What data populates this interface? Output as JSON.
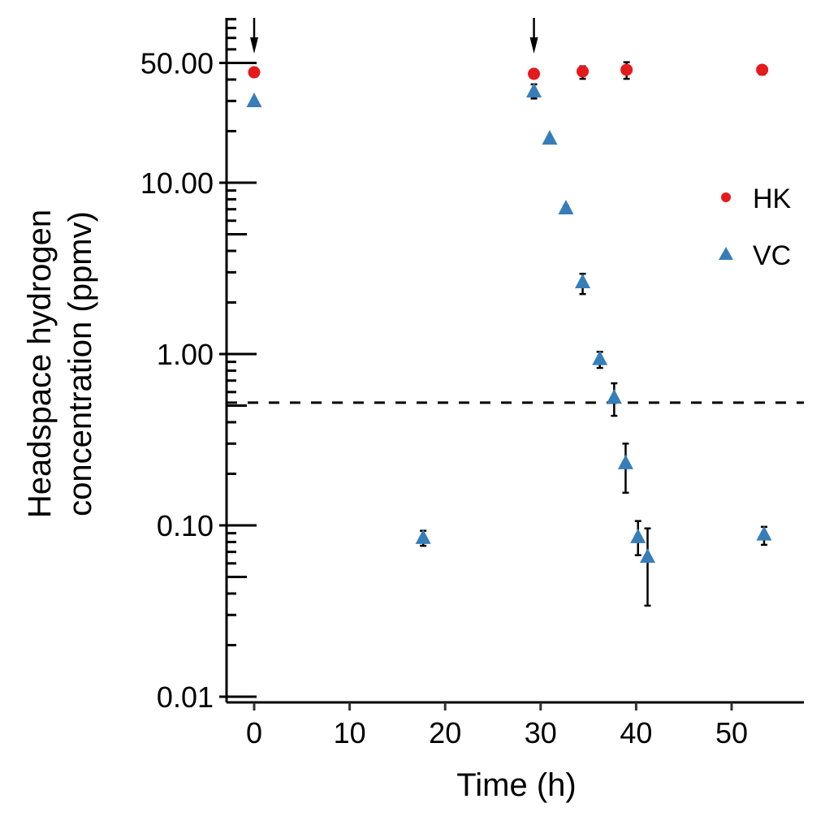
{
  "chart_data": {
    "type": "scatter",
    "title": "",
    "xlabel": "Time (h)",
    "ylabel_lines": [
      "Headspace hydrogen",
      "concentration (ppmv)"
    ],
    "ylabel": "Headspace hydrogen concentration (ppmv)",
    "xscale": "linear",
    "yscale": "log",
    "xlim": [
      -2.5,
      57.5
    ],
    "ylim": [
      0.0095,
      95
    ],
    "xticks": [
      0,
      10,
      20,
      30,
      40,
      50
    ],
    "xtick_labels": [
      "0",
      "10",
      "20",
      "30",
      "40",
      "50"
    ],
    "yticks": [
      0.01,
      0.1,
      1,
      10,
      50
    ],
    "ytick_labels": [
      "0.01",
      "0.10",
      "1.00",
      "10.00",
      "50.00"
    ],
    "grid": false,
    "legend_position": "right",
    "detection_limit": 0.52,
    "arrows_at_time": [
      0,
      29.3
    ],
    "series": [
      {
        "name": "HK",
        "marker": "circle",
        "color": "#e41a1c",
        "points": [
          {
            "x": 0.0,
            "y": 44.1,
            "err_low": 44.1,
            "err_high": 44.1
          },
          {
            "x": 29.3,
            "y": 43.2,
            "err_low": 43.2,
            "err_high": 43.2
          },
          {
            "x": 34.4,
            "y": 44.6,
            "err_low": 40.4,
            "err_high": 47.8
          },
          {
            "x": 39.0,
            "y": 45.6,
            "err_low": 40.4,
            "err_high": 50.5
          },
          {
            "x": 53.2,
            "y": 45.6,
            "err_low": 42.8,
            "err_high": 47.8
          }
        ]
      },
      {
        "name": "VC",
        "marker": "triangle",
        "color": "#377eb8",
        "points": [
          {
            "x": 0.0,
            "y": 30.1,
            "err_low": 30.1,
            "err_high": 30.1
          },
          {
            "x": 17.7,
            "y": 0.085,
            "err_low": 0.076,
            "err_high": 0.093
          },
          {
            "x": 29.3,
            "y": 34.3,
            "err_low": 31.0,
            "err_high": 37.5
          },
          {
            "x": 30.95,
            "y": 18.2,
            "err_low": 18.2,
            "err_high": 18.2
          },
          {
            "x": 32.65,
            "y": 7.13,
            "err_low": 6.9,
            "err_high": 7.3
          },
          {
            "x": 34.4,
            "y": 2.64,
            "err_low": 2.24,
            "err_high": 2.94
          },
          {
            "x": 36.2,
            "y": 0.94,
            "err_low": 0.83,
            "err_high": 1.03
          },
          {
            "x": 37.7,
            "y": 0.56,
            "err_low": 0.436,
            "err_high": 0.675
          },
          {
            "x": 38.9,
            "y": 0.232,
            "err_low": 0.155,
            "err_high": 0.3
          },
          {
            "x": 40.2,
            "y": 0.086,
            "err_low": 0.067,
            "err_high": 0.106
          },
          {
            "x": 41.2,
            "y": 0.066,
            "err_low": 0.034,
            "err_high": 0.096
          },
          {
            "x": 53.4,
            "y": 0.089,
            "err_low": 0.077,
            "err_high": 0.098
          }
        ]
      }
    ]
  }
}
